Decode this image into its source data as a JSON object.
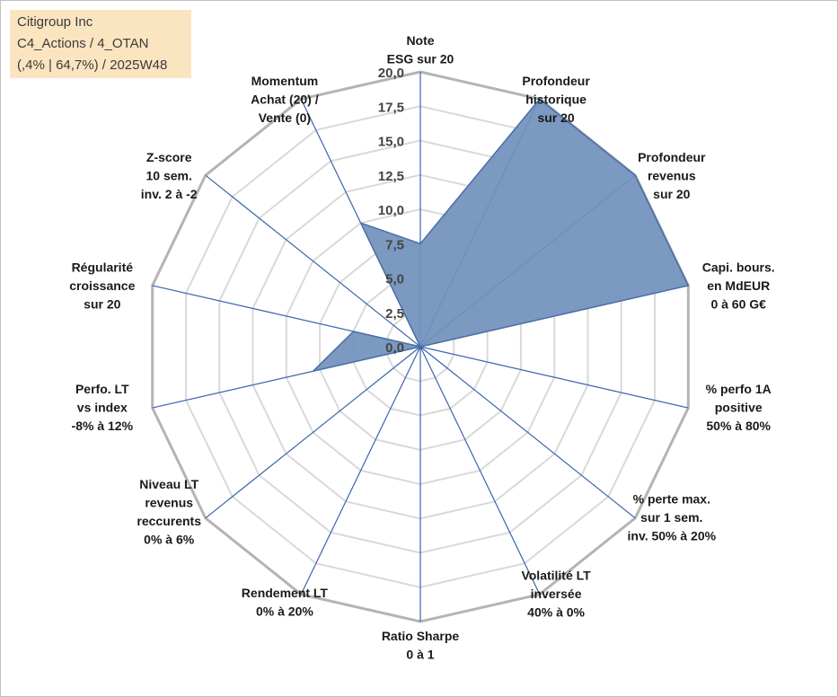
{
  "title_lines": [
    "Citigroup Inc",
    "C4_Actions / 4_OTAN",
    "(,4% | 64,7%) / 2025W48"
  ],
  "colors": {
    "fill": "#7191bc",
    "stroke": "#4a6fa5",
    "spoke": "#3a64ad",
    "outer_grid": "#b4b4b4",
    "inner_grid": "#d9d9d9",
    "title_bg": "#fbe5c0"
  },
  "chart_data": {
    "type": "radar",
    "rmin": 0,
    "rmax": 20,
    "ticks": [
      "0,0",
      "2,5",
      "5,0",
      "7,5",
      "10,0",
      "12,5",
      "15,0",
      "17,5",
      "20,0"
    ],
    "axes": [
      {
        "label": [
          "Note",
          "ESG sur 20"
        ],
        "value": 7.5
      },
      {
        "label": [
          "Profondeur",
          "historique",
          "sur 20"
        ],
        "value": 20
      },
      {
        "label": [
          "Profondeur",
          "revenus",
          "sur 20"
        ],
        "value": 20
      },
      {
        "label": [
          "Capi. bours.",
          "en MdEUR",
          "0 à 60 G€"
        ],
        "value": 20
      },
      {
        "label": [
          "% perfo 1A",
          "positive",
          "50% à 80%"
        ],
        "value": 0
      },
      {
        "label": [
          "% perte max.",
          "sur 1 sem.",
          "inv. 50% à 20%"
        ],
        "value": 0
      },
      {
        "label": [
          "Volatilité LT",
          "inversée",
          "40% à 0%"
        ],
        "value": 0
      },
      {
        "label": [
          "Ratio Sharpe",
          "0 à 1"
        ],
        "value": 0
      },
      {
        "label": [
          "Rendement LT",
          "0% à 20%"
        ],
        "value": 0
      },
      {
        "label": [
          "Niveau LT",
          "revenus",
          "reccurents",
          "0% à 6%"
        ],
        "value": 0
      },
      {
        "label": [
          "Perfo. LT",
          "vs index",
          "-8% à 12%"
        ],
        "value": 8
      },
      {
        "label": [
          "Régularité",
          "croissance",
          "sur 20"
        ],
        "value": 5
      },
      {
        "label": [
          "Z-score",
          "10 sem.",
          "inv. 2 à -2"
        ],
        "value": 0
      },
      {
        "label": [
          "Momentum",
          "Achat (20) /",
          "Vente (0)"
        ],
        "value": 10
      }
    ]
  }
}
